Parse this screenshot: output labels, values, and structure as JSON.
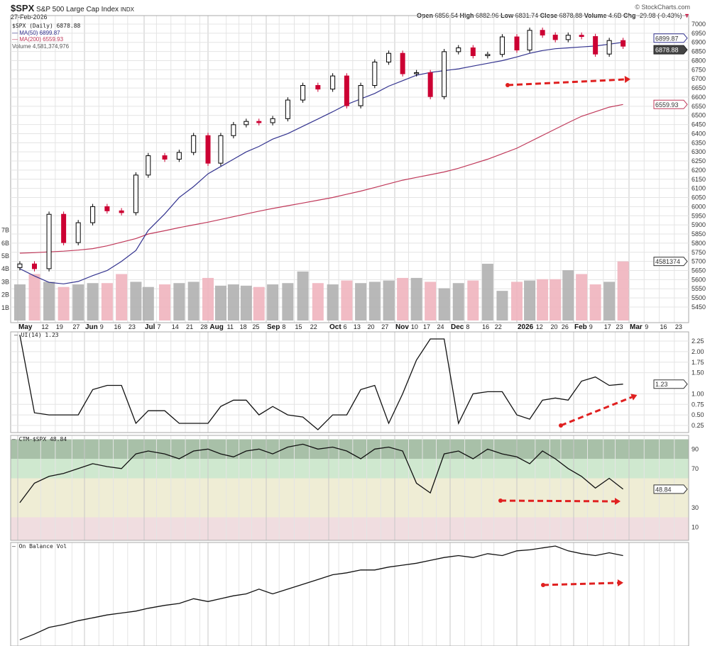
{
  "header": {
    "symbol": "$SPX",
    "name": "S&P 500 Large Cap Index",
    "exchange": "INDX",
    "date": "27-Feb-2026",
    "copyright": "© StockCharts.com",
    "ohlc": [
      {
        "k": "Open",
        "v": "6856.54"
      },
      {
        "k": "High",
        "v": "6882.96"
      },
      {
        "k": "Low",
        "v": "6831.74"
      },
      {
        "k": "Close",
        "v": "6878.88"
      },
      {
        "k": "Volume",
        "v": "4.6B"
      },
      {
        "k": "Chg",
        "v": "-29.98 (-0.43%)"
      }
    ]
  },
  "legend": {
    "price": "$SPX (Daily) 6878.88",
    "ma50": "MA(50) 6899.87",
    "ma200": "MA(200) 6559.93",
    "volume": "Volume 4,581,374,976"
  },
  "panels": {
    "ui": "UI(14) 1.23",
    "ctm": "CTM-$SPX 48.84",
    "obv": "On Balance Vol"
  },
  "tags": {
    "ma50": "6899.87",
    "close": "6878.88",
    "ma200": "6559.93",
    "volume": "4581374",
    "ui": "1.23",
    "ctm": "48.84"
  },
  "colors": {
    "up": "#ffffff",
    "down": "#cc0033",
    "ma50": "#33338f",
    "ma200": "#c0395a",
    "vol_up": "#b0b0b0",
    "vol_down": "#f0b4be",
    "arrow": "#e02020",
    "ctm_bands": [
      "#a8c0a8",
      "#cfe8cf",
      "#efedd5",
      "#f0dde0"
    ]
  },
  "chart_data": [
    {
      "type": "candlestick",
      "title": "$SPX (Daily)",
      "scale": "weekly-sampled closes",
      "ylim": [
        5425,
        7025
      ],
      "yticks": [
        7000,
        6950,
        6900,
        6850,
        6800,
        6750,
        6700,
        6650,
        6600,
        6550,
        6500,
        6450,
        6400,
        6350,
        6300,
        6250,
        6200,
        6150,
        6100,
        6050,
        6000,
        5950,
        5900,
        5850,
        5800,
        5750,
        5700,
        5650,
        5600,
        5550,
        5500,
        5450
      ],
      "x": [
        "2025-05-02",
        "2025-05-09",
        "2025-05-16",
        "2025-05-23",
        "2025-05-30",
        "2025-06-06",
        "2025-06-13",
        "2025-06-20",
        "2025-06-27",
        "2025-07-03",
        "2025-07-11",
        "2025-07-18",
        "2025-07-25",
        "2025-08-01",
        "2025-08-08",
        "2025-08-15",
        "2025-08-22",
        "2025-08-29",
        "2025-09-05",
        "2025-09-12",
        "2025-09-19",
        "2025-09-26",
        "2025-10-03",
        "2025-10-10",
        "2025-10-17",
        "2025-10-24",
        "2025-10-31",
        "2025-11-07",
        "2025-11-14",
        "2025-11-21",
        "2025-11-28",
        "2025-12-05",
        "2025-12-12",
        "2025-12-19",
        "2025-12-26",
        "2026-01-02",
        "2026-01-09",
        "2026-01-16",
        "2026-01-23",
        "2026-01-30",
        "2026-02-06",
        "2026-02-13",
        "2026-02-20",
        "2026-02-27"
      ],
      "close": [
        5686,
        5660,
        5958,
        5803,
        5912,
        6000,
        5977,
        5967,
        6173,
        6279,
        6260,
        6297,
        6389,
        6238,
        6389,
        6449,
        6467,
        6460,
        6482,
        6584,
        6664,
        6644,
        6716,
        6553,
        6664,
        6792,
        6840,
        6728,
        6734,
        6603,
        6849,
        6870,
        6827,
        6834,
        6930,
        6858,
        6966,
        6940,
        6915,
        6939,
        6932,
        6836,
        6910,
        6879
      ],
      "series": [
        {
          "name": "MA(50)",
          "values": [
            5660,
            5620,
            5585,
            5577,
            5590,
            5622,
            5650,
            5700,
            5760,
            5870,
            5960,
            6050,
            6110,
            6180,
            6220,
            6260,
            6300,
            6330,
            6370,
            6400,
            6440,
            6480,
            6520,
            6560,
            6590,
            6620,
            6660,
            6690,
            6720,
            6735,
            6745,
            6755,
            6770,
            6785,
            6800,
            6820,
            6840,
            6855,
            6865,
            6870,
            6875,
            6880,
            6890,
            6900
          ]
        },
        {
          "name": "MA(200)",
          "values": [
            5745,
            5748,
            5752,
            5756,
            5762,
            5770,
            5785,
            5805,
            5825,
            5850,
            5868,
            5885,
            5900,
            5915,
            5930,
            5945,
            5960,
            5975,
            5990,
            6005,
            6020,
            6035,
            6050,
            6068,
            6085,
            6105,
            6125,
            6145,
            6160,
            6175,
            6190,
            6210,
            6235,
            6260,
            6290,
            6320,
            6355,
            6390,
            6425,
            6460,
            6495,
            6520,
            6545,
            6560
          ]
        }
      ]
    },
    {
      "type": "bar",
      "title": "Volume",
      "unit": "B",
      "yticks": [
        "1B",
        "2B",
        "3B",
        "4B",
        "5B",
        "6B",
        "7B"
      ],
      "values": [
        2.8,
        3.6,
        3.0,
        2.6,
        2.8,
        2.9,
        2.9,
        3.6,
        3.0,
        2.6,
        2.8,
        2.9,
        3.0,
        3.3,
        2.7,
        2.8,
        2.7,
        2.6,
        2.8,
        2.9,
        3.8,
        2.9,
        2.8,
        3.1,
        2.9,
        3.0,
        3.1,
        3.3,
        3.3,
        3.0,
        2.5,
        2.9,
        3.1,
        4.4,
        2.3,
        3.0,
        3.1,
        3.2,
        3.2,
        3.9,
        3.6,
        2.8,
        3.0,
        4.58
      ]
    },
    {
      "type": "line",
      "title": "UI(14)",
      "ylim": [
        0,
        2.4
      ],
      "yticks": [
        "2.25",
        "2.00",
        "1.75",
        "1.50",
        "1.00",
        "0.75",
        "0.50",
        "0.25"
      ],
      "values": [
        2.4,
        0.55,
        0.5,
        0.5,
        0.5,
        1.1,
        1.2,
        1.2,
        0.3,
        0.6,
        0.6,
        0.3,
        0.3,
        0.3,
        0.7,
        0.85,
        0.85,
        0.5,
        0.7,
        0.5,
        0.45,
        0.15,
        0.5,
        0.5,
        1.1,
        1.2,
        0.3,
        1.0,
        1.8,
        2.3,
        2.3,
        0.3,
        1.0,
        1.05,
        1.05,
        0.5,
        0.4,
        0.85,
        0.9,
        0.85,
        1.3,
        1.4,
        1.2,
        1.23
      ]
    },
    {
      "type": "line",
      "title": "CTM-$SPX",
      "ylim": [
        0,
        100
      ],
      "yticks": [
        "90",
        "70",
        "30",
        "10"
      ],
      "bands": [
        [
          80,
          100
        ],
        [
          60,
          80
        ],
        [
          20,
          60
        ],
        [
          0,
          20
        ]
      ],
      "values": [
        35,
        55,
        62,
        65,
        70,
        75,
        72,
        70,
        85,
        88,
        85,
        80,
        88,
        90,
        85,
        82,
        88,
        90,
        85,
        92,
        95,
        90,
        92,
        88,
        80,
        90,
        92,
        88,
        55,
        45,
        85,
        88,
        80,
        90,
        85,
        82,
        75,
        88,
        80,
        70,
        62,
        50,
        60,
        48.84
      ]
    },
    {
      "type": "line",
      "title": "On Balance Vol",
      "values": [
        2,
        8,
        15,
        18,
        22,
        25,
        28,
        30,
        32,
        35,
        38,
        40,
        45,
        42,
        45,
        48,
        50,
        55,
        50,
        55,
        60,
        65,
        70,
        72,
        75,
        75,
        78,
        80,
        82,
        85,
        88,
        90,
        88,
        92,
        90,
        95,
        96,
        98,
        100,
        95,
        92,
        90,
        93,
        90
      ]
    }
  ],
  "xaxis": [
    {
      "t": "May",
      "d": "2025-05-01",
      "m": 1
    },
    {
      "t": "12",
      "d": "2025-05-12"
    },
    {
      "t": "19",
      "d": "2025-05-19"
    },
    {
      "t": "27",
      "d": "2025-05-27"
    },
    {
      "t": "Jun",
      "d": "2025-06-02",
      "m": 1
    },
    {
      "t": "9",
      "d": "2025-06-09"
    },
    {
      "t": "16",
      "d": "2025-06-16"
    },
    {
      "t": "23",
      "d": "2025-06-23"
    },
    {
      "t": "Jul",
      "d": "2025-07-01",
      "m": 1
    },
    {
      "t": "7",
      "d": "2025-07-07"
    },
    {
      "t": "14",
      "d": "2025-07-14"
    },
    {
      "t": "21",
      "d": "2025-07-21"
    },
    {
      "t": "28",
      "d": "2025-07-28"
    },
    {
      "t": "Aug",
      "d": "2025-08-01",
      "m": 1
    },
    {
      "t": "11",
      "d": "2025-08-11"
    },
    {
      "t": "18",
      "d": "2025-08-18"
    },
    {
      "t": "25",
      "d": "2025-08-25"
    },
    {
      "t": "Sep",
      "d": "2025-09-02",
      "m": 1
    },
    {
      "t": "8",
      "d": "2025-09-08"
    },
    {
      "t": "15",
      "d": "2025-09-15"
    },
    {
      "t": "22",
      "d": "2025-09-22"
    },
    {
      "t": "Oct",
      "d": "2025-10-01",
      "m": 1
    },
    {
      "t": "6",
      "d": "2025-10-06"
    },
    {
      "t": "13",
      "d": "2025-10-13"
    },
    {
      "t": "20",
      "d": "2025-10-20"
    },
    {
      "t": "27",
      "d": "2025-10-27"
    },
    {
      "t": "Nov",
      "d": "2025-11-03",
      "m": 1
    },
    {
      "t": "10",
      "d": "2025-11-10"
    },
    {
      "t": "17",
      "d": "2025-11-17"
    },
    {
      "t": "24",
      "d": "2025-11-24"
    },
    {
      "t": "Dec",
      "d": "2025-12-01",
      "m": 1
    },
    {
      "t": "8",
      "d": "2025-12-08"
    },
    {
      "t": "16",
      "d": "2025-12-16"
    },
    {
      "t": "22",
      "d": "2025-12-22"
    },
    {
      "t": "2026",
      "d": "2026-01-02",
      "m": 1
    },
    {
      "t": "12",
      "d": "2026-01-12"
    },
    {
      "t": "20",
      "d": "2026-01-20"
    },
    {
      "t": "26",
      "d": "2026-01-26"
    },
    {
      "t": "Feb",
      "d": "2026-02-02",
      "m": 1
    },
    {
      "t": "9",
      "d": "2026-02-09"
    },
    {
      "t": "17",
      "d": "2026-02-17"
    },
    {
      "t": "23",
      "d": "2026-02-23"
    },
    {
      "t": "Mar",
      "d": "2026-03-02",
      "m": 1
    },
    {
      "t": "9",
      "d": "2026-03-09"
    },
    {
      "t": "16",
      "d": "2026-03-16"
    },
    {
      "t": "23",
      "d": "2026-03-23"
    }
  ]
}
